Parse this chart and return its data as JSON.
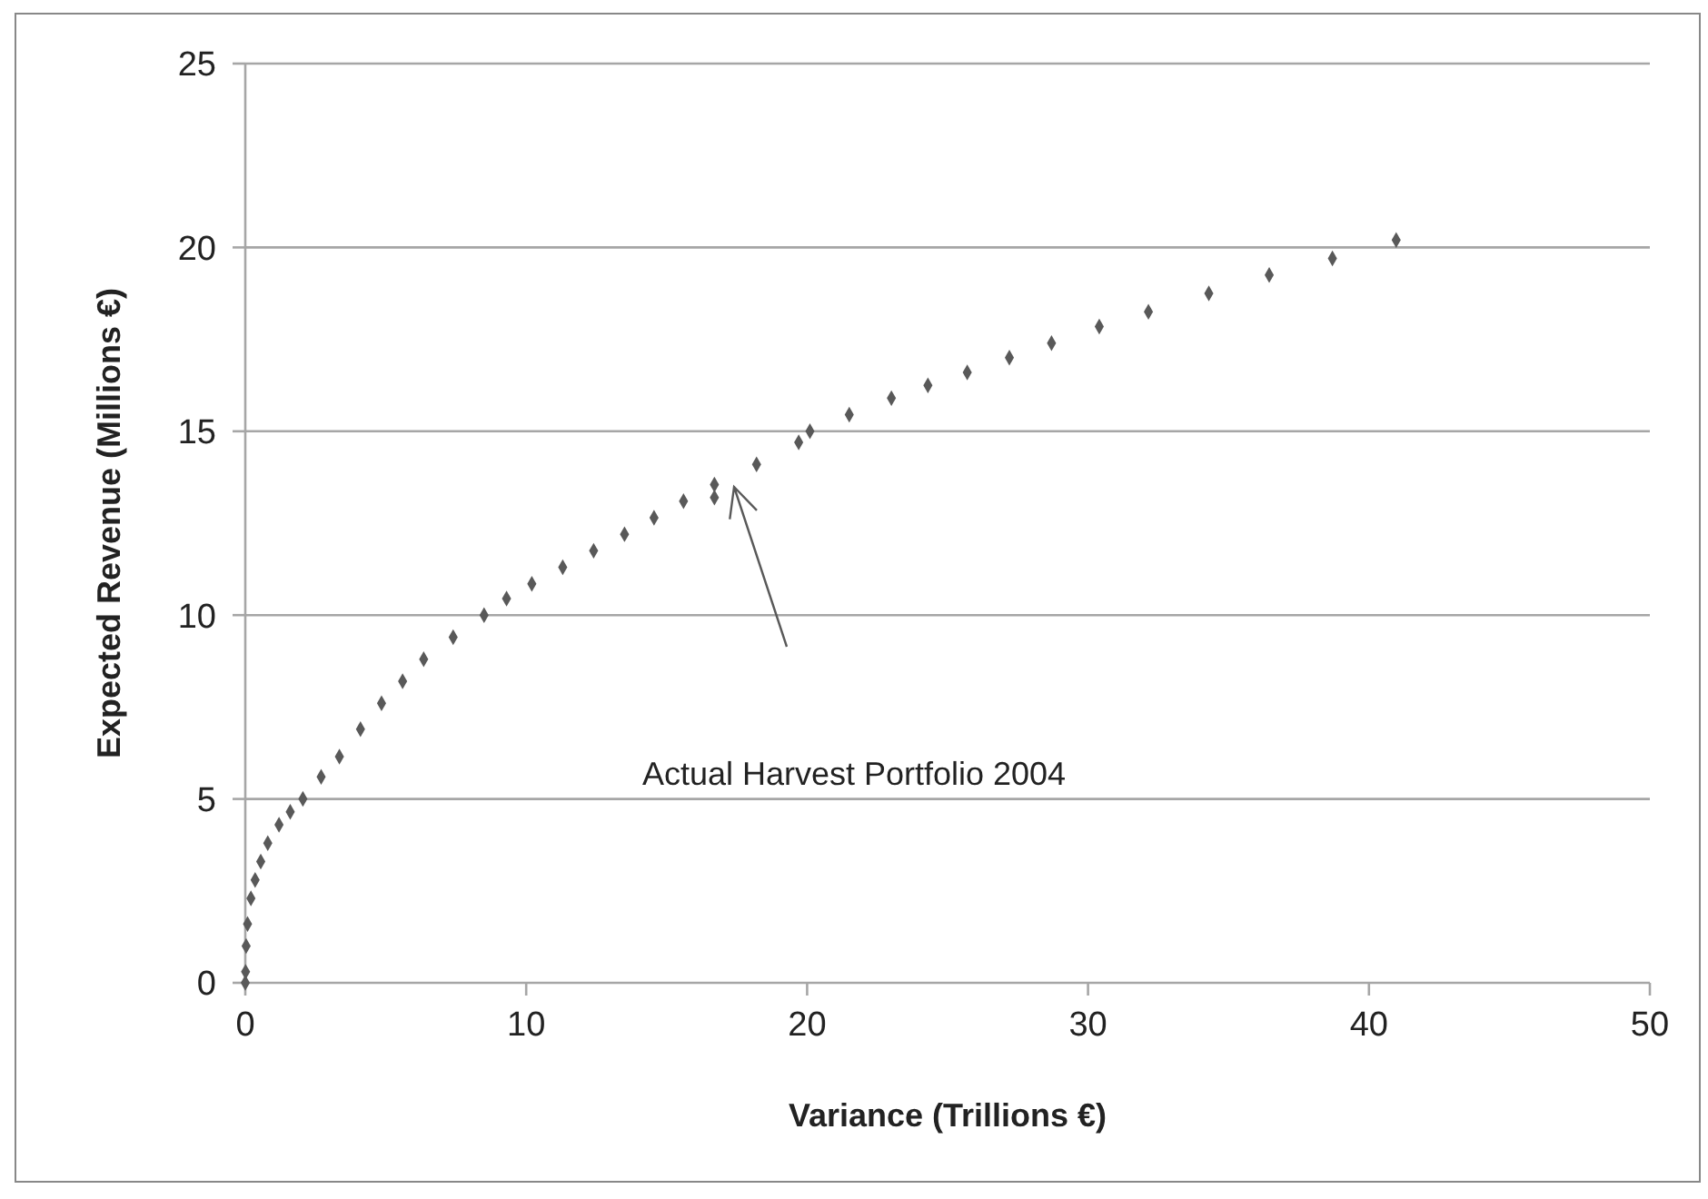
{
  "chart_data": {
    "type": "scatter",
    "xlabel": "Variance (Trillions €)",
    "ylabel": "Expected Revenue (Millions €)",
    "xlim": [
      0,
      50
    ],
    "xticks": [
      0,
      10,
      20,
      30,
      40,
      50
    ],
    "ylim": [
      0,
      25
    ],
    "yticks": [
      0,
      5,
      10,
      15,
      20,
      25
    ],
    "grid": "y",
    "marker": "diamond",
    "annotations": [
      "Actual Harvest Portfolio 2004"
    ],
    "series": [
      {
        "color": "#595959",
        "x": [
          0,
          0.01,
          0.03,
          0.08,
          0.2,
          0.35,
          0.55,
          0.8,
          1.2,
          1.6,
          2.05,
          2.7,
          3.35,
          4.1,
          4.85,
          5.6,
          6.35,
          7.4,
          8.5,
          9.3,
          10.2,
          11.3,
          12.4,
          13.5,
          14.55,
          15.6,
          16.7,
          18.2,
          19.7,
          20.1,
          21.5,
          23.0,
          24.3,
          25.7,
          27.2,
          28.7,
          30.4,
          32.15,
          34.3,
          36.45,
          38.7,
          40.97
        ],
        "values": [
          0,
          0.3,
          1.0,
          1.6,
          2.3,
          2.8,
          3.3,
          3.8,
          4.3,
          4.65,
          5.0,
          5.6,
          6.15,
          6.9,
          7.6,
          8.2,
          8.8,
          9.4,
          10.0,
          10.45,
          10.85,
          11.3,
          11.75,
          12.2,
          12.65,
          13.1,
          13.55,
          14.1,
          14.7,
          15.0,
          15.45,
          15.9,
          16.25,
          16.6,
          17.0,
          17.4,
          17.85,
          18.25,
          18.75,
          19.25,
          19.7,
          20.2
        ]
      },
      {
        "color": "#595959",
        "x": [
          16.7
        ],
        "values": [
          13.2
        ]
      }
    ]
  }
}
